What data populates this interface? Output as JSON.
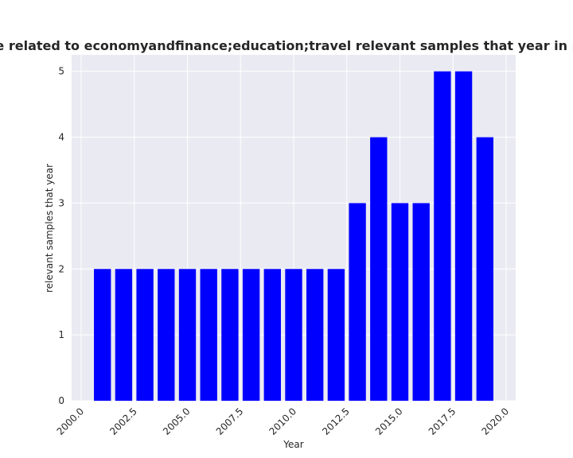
{
  "chart_data": {
    "type": "bar",
    "title": "ries are related to economyandfinance;education;travel relevant samples that year in privacy p",
    "xlabel": "Year",
    "ylabel": "relevant samples that year",
    "x": [
      2001,
      2002,
      2003,
      2004,
      2005,
      2006,
      2007,
      2008,
      2009,
      2010,
      2011,
      2012,
      2013,
      2014,
      2015,
      2016,
      2017,
      2018,
      2019
    ],
    "values": [
      2,
      2,
      2,
      2,
      2,
      2,
      2,
      2,
      2,
      2,
      2,
      2,
      3,
      4,
      3,
      3,
      5,
      5,
      4
    ],
    "xlim": [
      1999.55,
      2020.45
    ],
    "ylim": [
      0,
      5.25
    ],
    "xticks": [
      2000.0,
      2002.5,
      2005.0,
      2007.5,
      2010.0,
      2012.5,
      2015.0,
      2017.5,
      2020.0
    ],
    "xtick_labels": [
      "2000.0",
      "2002.5",
      "2005.0",
      "2007.5",
      "2010.0",
      "2012.5",
      "2015.0",
      "2017.5",
      "2020.0"
    ],
    "yticks": [
      0,
      1,
      2,
      3,
      4,
      5
    ],
    "ytick_labels": [
      "0",
      "1",
      "2",
      "3",
      "4",
      "5"
    ],
    "bar_width": 0.8,
    "grid": true,
    "legend": "none",
    "colors": {
      "bar": "#0000ff",
      "plot_background": "#eaeaf2",
      "grid": "#ffffff",
      "text": "#262626"
    }
  }
}
